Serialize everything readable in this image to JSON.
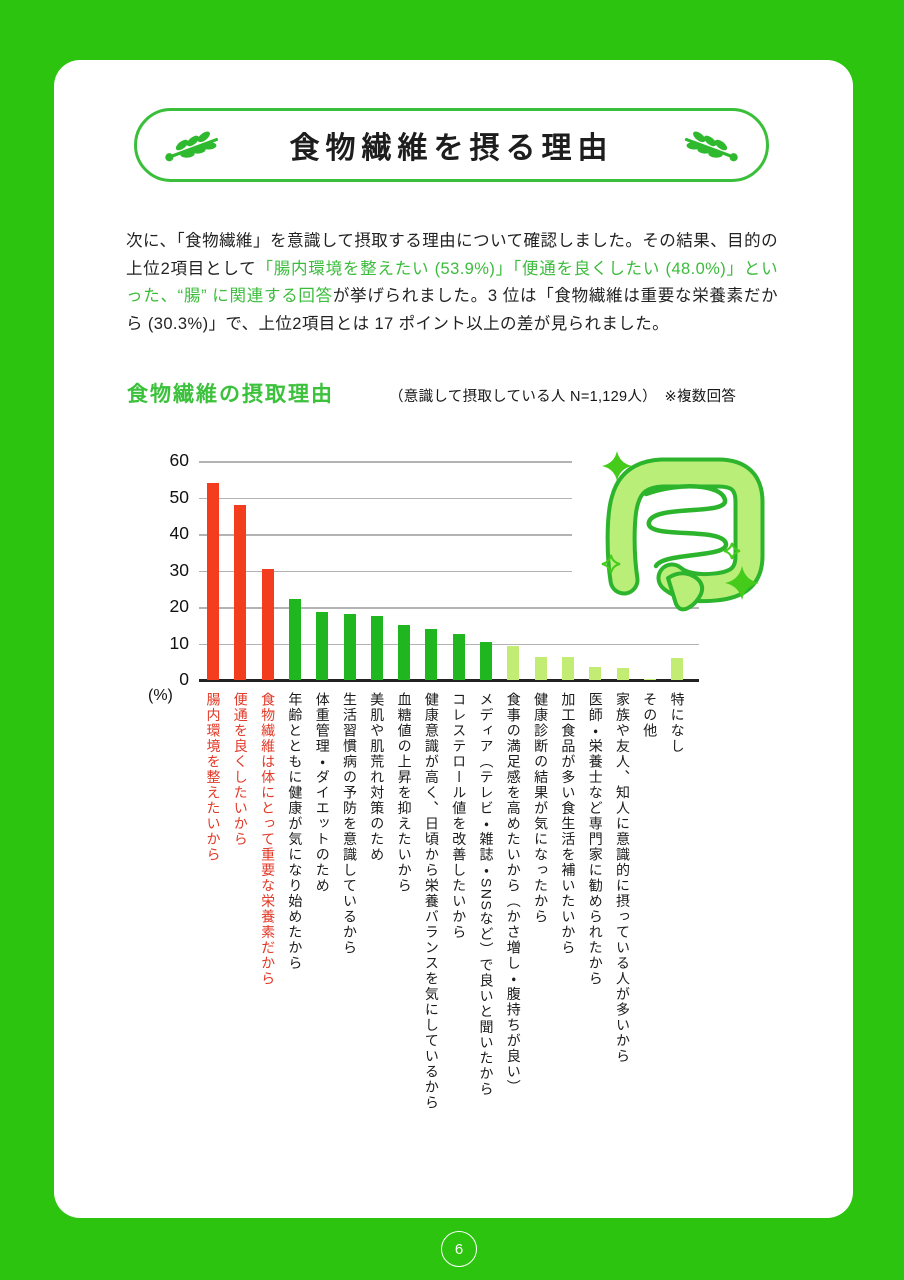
{
  "page": {
    "number": "6"
  },
  "banner": {
    "title": "食物繊維を摂る理由"
  },
  "intro": {
    "seg1": "次に、「食物繊維」を意識して摂取する理由について確認しました。その結果、目的の上位2項目として",
    "seg2": "「腸内環境を整えたい (53.9%)」「便通を良くしたい (48.0%)」といった、“腸” に関連する回答",
    "seg3": "が挙げられました。3 位は「食物繊維は重要な栄養素だから (30.3%)」で、上位2項目とは 17 ポイント以上の差が見られました。"
  },
  "chart_header": {
    "title": "食物繊維の摂取理由",
    "subtitle": "（意識して摂取している人 N=1,129人）　※複数回答"
  },
  "chart_data": {
    "type": "bar",
    "title": "食物繊維の摂取理由",
    "sample_note": "意識して摂取している人 N=1,129人",
    "multi_answer_note": "※複数回答",
    "ylabel": "(%)",
    "ylim": [
      0,
      60
    ],
    "yticks": [
      0,
      10,
      20,
      30,
      40,
      50,
      60
    ],
    "grid": true,
    "legend_position": "none",
    "categories": [
      "腸内環境を整えたいから",
      "便通を良くしたいから",
      "食物繊維は体にとって重要な栄養素だから",
      "年齢とともに健康が気になり始めたから",
      "体重管理・ダイエットのため",
      "生活習慣病の予防を意識しているから",
      "美肌や肌荒れ対策のため",
      "血糖値の上昇を抑えたいから",
      "健康意識が高く、日頃から栄養バランスを気にしているから",
      "コレステロール値を改善したいから",
      "メディア（テレビ・雑誌・SNSなど）で良いと聞いたから",
      "食事の満足感を高めたいから（かさ増し・腹持ちが良い）",
      "健康診断の結果が気になったから",
      "加工食品が多い食生活を補いたいから",
      "医師・栄養士など専門家に勧められたから",
      "家族や友人、知人に意識的に摂っている人が多いから",
      "その他",
      "特になし"
    ],
    "values": [
      53.9,
      48.0,
      30.3,
      22.2,
      18.5,
      18.1,
      17.5,
      15.0,
      13.9,
      12.5,
      10.4,
      9.3,
      6.4,
      6.2,
      3.5,
      3.4,
      0.2,
      5.9
    ],
    "bar_color_keys": [
      "red",
      "red",
      "red",
      "green",
      "green",
      "green",
      "green",
      "green",
      "green",
      "green",
      "green",
      "light",
      "light",
      "light",
      "light",
      "light",
      "light",
      "light"
    ],
    "label_color_keys": [
      "red",
      "red",
      "red",
      "dark",
      "dark",
      "dark",
      "dark",
      "dark",
      "dark",
      "dark",
      "dark",
      "dark",
      "dark",
      "dark",
      "dark",
      "dark",
      "dark",
      "dark"
    ],
    "colors": {
      "red": "#f43c1e",
      "green": "#20b620",
      "light": "#c3ec74",
      "label_red": "#e23a28",
      "label_dark": "#1b1b1b",
      "grid": "#b3b3b3",
      "axis": "#222222"
    }
  }
}
